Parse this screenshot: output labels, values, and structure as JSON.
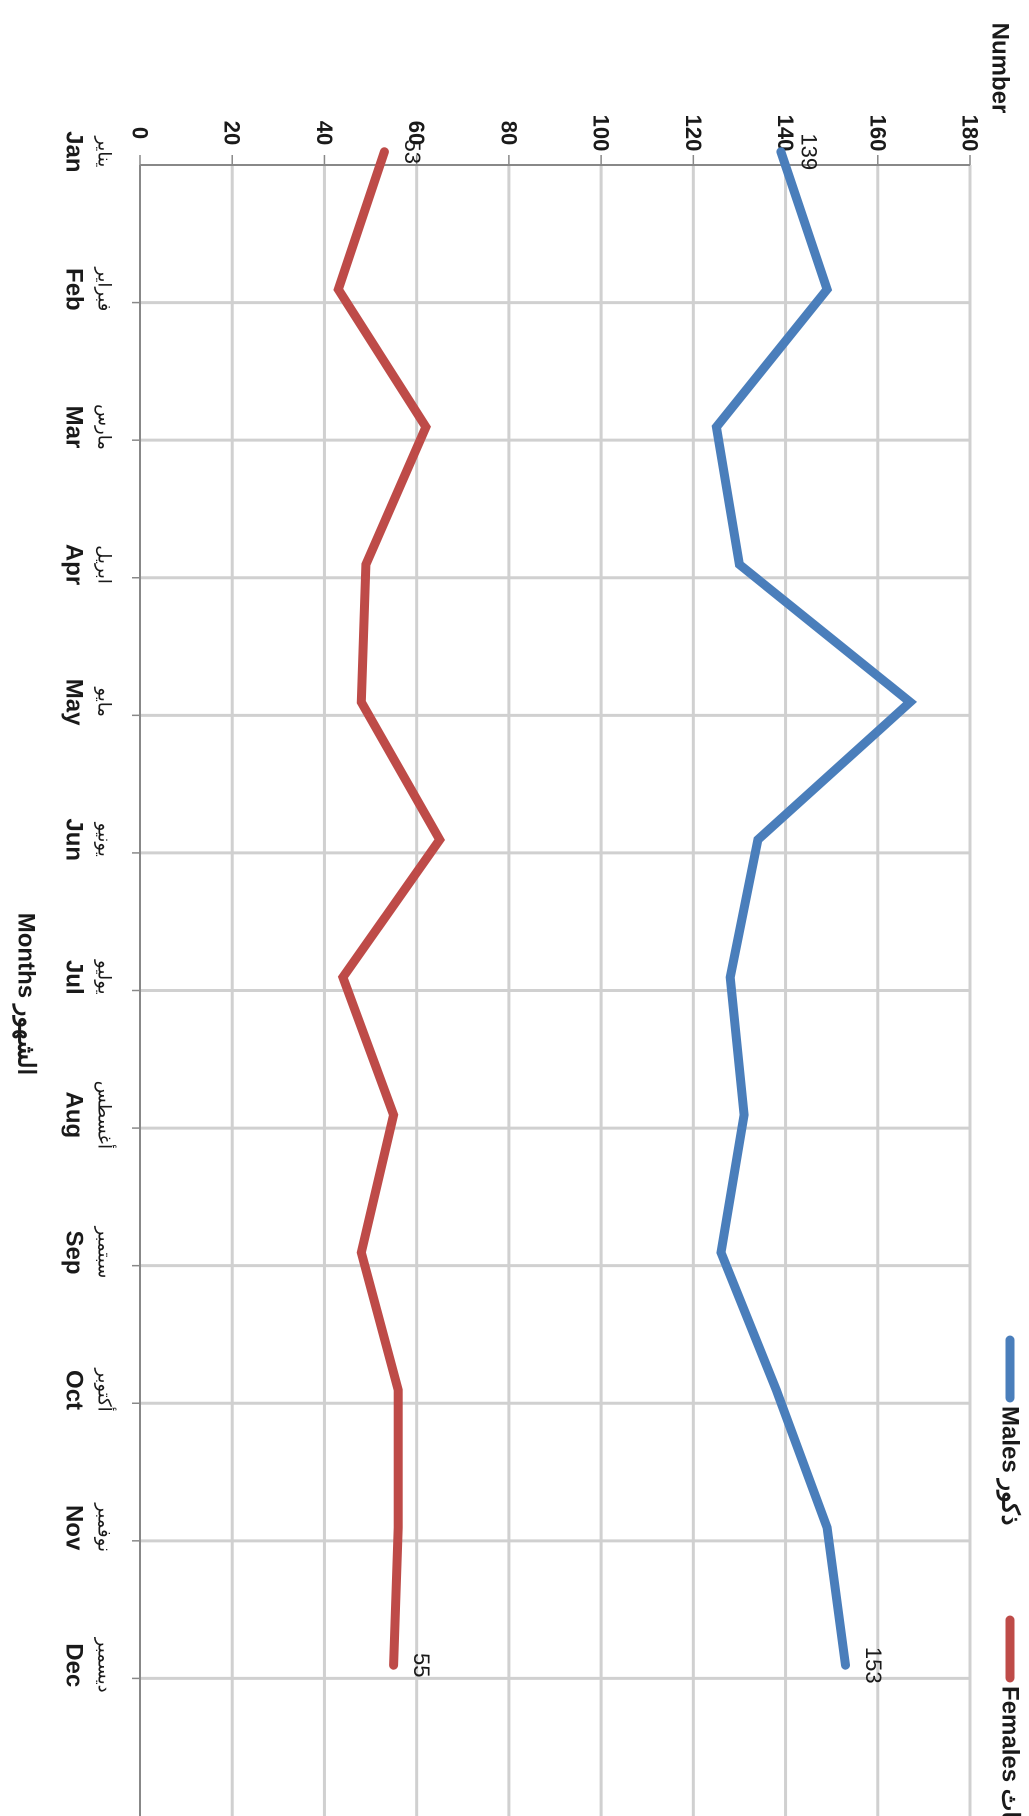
{
  "chart_data": {
    "type": "line",
    "ylabel": "Number",
    "xlabel": "Months الشهور",
    "ylim": [
      0,
      180
    ],
    "yticks": [
      0,
      20,
      40,
      60,
      80,
      100,
      120,
      140,
      160,
      180
    ],
    "grid": true,
    "legend_position": "top-right",
    "categories": [
      {
        "en": "Jan",
        "ar": "يناير"
      },
      {
        "en": "Feb",
        "ar": "فبراير"
      },
      {
        "en": "Mar",
        "ar": "مارس"
      },
      {
        "en": "Apr",
        "ar": "ابريل"
      },
      {
        "en": "May",
        "ar": "مايو"
      },
      {
        "en": "Jun",
        "ar": "يونيو"
      },
      {
        "en": "Jul",
        "ar": "يوليو"
      },
      {
        "en": "Aug",
        "ar": "أغسطس"
      },
      {
        "en": "Sep",
        "ar": "سبتمبر"
      },
      {
        "en": "Oct",
        "ar": "أكتوبر"
      },
      {
        "en": "Nov",
        "ar": "نوفمبر"
      },
      {
        "en": "Dec",
        "ar": "ديسمبر"
      }
    ],
    "series": [
      {
        "name": "Males ذكور",
        "color": "#4a7ebb",
        "values": [
          139,
          149,
          125,
          130,
          167,
          134,
          128,
          131,
          126,
          138,
          149,
          153
        ],
        "labels": {
          "0": "139",
          "11": "153"
        }
      },
      {
        "name": "Females إناث",
        "color": "#be4b48",
        "values": [
          53,
          43,
          62,
          49,
          48,
          65,
          44,
          55,
          48,
          56,
          56,
          55
        ],
        "labels": {
          "0": "53",
          "11": "55"
        }
      }
    ]
  }
}
